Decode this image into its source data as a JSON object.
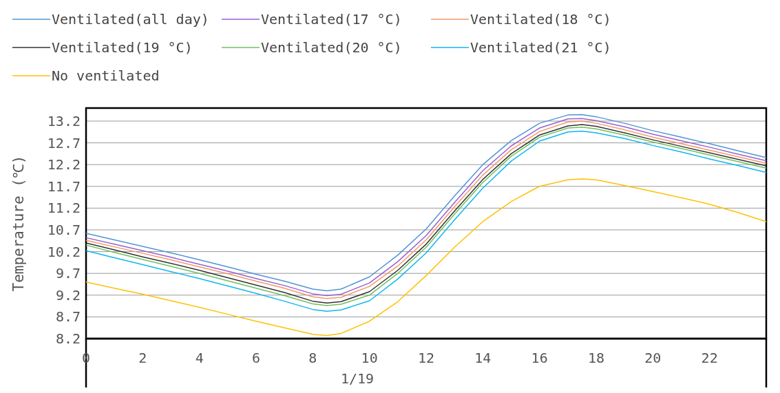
{
  "chart_data": {
    "type": "line",
    "xlabel": "1/19",
    "ylabel": "Temperature (℃)",
    "xlim": [
      0,
      24
    ],
    "ylim": [
      8.2,
      13.5
    ],
    "xticks": [
      0,
      2,
      4,
      6,
      8,
      10,
      12,
      14,
      16,
      18,
      20,
      22
    ],
    "yticks": [
      8.2,
      8.7,
      9.2,
      9.7,
      10.2,
      10.7,
      11.2,
      11.7,
      12.2,
      12.7,
      13.2
    ],
    "grid": "y",
    "legend": "top",
    "line_style": "solid",
    "marker": "none",
    "x": [
      0,
      1,
      2,
      3,
      4,
      5,
      6,
      7,
      8,
      8.5,
      9,
      10,
      11,
      12,
      13,
      14,
      15,
      16,
      17,
      17.5,
      18,
      19,
      20,
      21,
      22,
      23,
      24
    ],
    "series": [
      {
        "name": "Ventilated(all day)",
        "color": "#4f95d3",
        "values": [
          10.62,
          10.47,
          10.32,
          10.17,
          10.01,
          9.85,
          9.68,
          9.52,
          9.34,
          9.3,
          9.34,
          9.62,
          10.12,
          10.72,
          11.48,
          12.2,
          12.75,
          13.15,
          13.34,
          13.35,
          13.3,
          13.15,
          12.98,
          12.83,
          12.68,
          12.52,
          12.36
        ]
      },
      {
        "name": "Ventilated(17 °C)",
        "color": "#9b5fcf",
        "values": [
          10.52,
          10.37,
          10.22,
          10.07,
          9.91,
          9.75,
          9.58,
          9.42,
          9.23,
          9.19,
          9.22,
          9.48,
          9.97,
          10.57,
          11.33,
          12.06,
          12.63,
          13.04,
          13.25,
          13.26,
          13.21,
          13.07,
          12.9,
          12.75,
          12.6,
          12.44,
          12.29
        ]
      },
      {
        "name": "Ventilated(18 °C)",
        "color": "#f4996b",
        "values": [
          10.46,
          10.31,
          10.16,
          10.01,
          9.85,
          9.69,
          9.52,
          9.36,
          9.16,
          9.12,
          9.15,
          9.4,
          9.87,
          10.47,
          11.23,
          11.96,
          12.54,
          12.96,
          13.18,
          13.2,
          13.15,
          13.0,
          12.83,
          12.68,
          12.53,
          12.38,
          12.23
        ]
      },
      {
        "name": "Ventilated(19 °C)",
        "color": "#333333",
        "values": [
          10.4,
          10.24,
          10.08,
          9.93,
          9.77,
          9.6,
          9.43,
          9.26,
          9.06,
          9.02,
          9.05,
          9.28,
          9.77,
          10.37,
          11.13,
          11.86,
          12.45,
          12.88,
          13.09,
          13.12,
          13.08,
          12.93,
          12.77,
          12.62,
          12.47,
          12.32,
          12.17
        ]
      },
      {
        "name": "Ventilated(20 °C)",
        "color": "#70bf5e",
        "values": [
          10.35,
          10.18,
          10.02,
          9.86,
          9.7,
          9.53,
          9.36,
          9.19,
          9.0,
          8.96,
          8.99,
          9.2,
          9.7,
          10.3,
          11.06,
          11.79,
          12.39,
          12.83,
          13.04,
          13.06,
          13.02,
          12.88,
          12.72,
          12.57,
          12.42,
          12.27,
          12.12
        ]
      },
      {
        "name": "Ventilated(21 °C)",
        "color": "#0fb6f0",
        "values": [
          10.22,
          10.06,
          9.9,
          9.74,
          9.58,
          9.41,
          9.24,
          9.06,
          8.87,
          8.83,
          8.86,
          9.07,
          9.57,
          10.17,
          10.93,
          11.66,
          12.28,
          12.74,
          12.95,
          12.97,
          12.93,
          12.8,
          12.64,
          12.49,
          12.33,
          12.18,
          12.02
        ]
      },
      {
        "name": "No ventilated",
        "color": "#ffc000",
        "values": [
          9.5,
          9.36,
          9.22,
          9.07,
          8.92,
          8.76,
          8.6,
          8.45,
          8.3,
          8.27,
          8.32,
          8.6,
          9.05,
          9.65,
          10.3,
          10.89,
          11.35,
          11.7,
          11.85,
          11.87,
          11.85,
          11.72,
          11.58,
          11.44,
          11.29,
          11.1,
          10.89
        ]
      }
    ]
  }
}
